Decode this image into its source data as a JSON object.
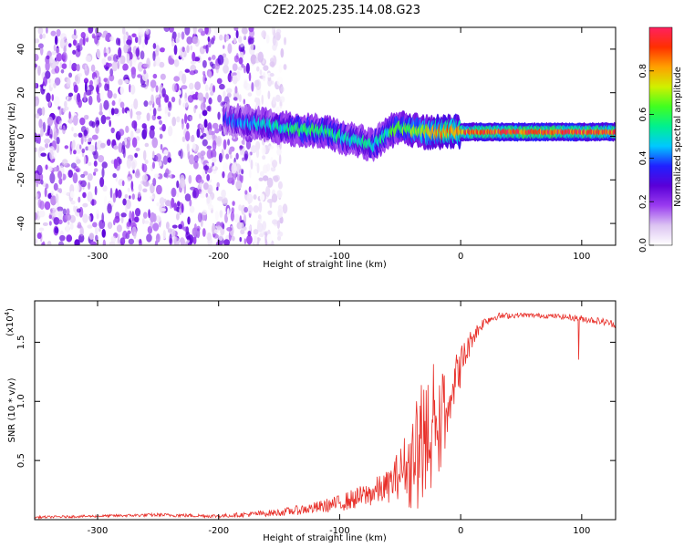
{
  "figure_title": "C2E2.2025.235.14.08.G23",
  "colors": {
    "line": "#e8302a",
    "axis": "#000000",
    "colormap": [
      "#ffffff",
      "#dcc4f2",
      "#9a3cf0",
      "#5a00d8",
      "#2020ff",
      "#00c8ff",
      "#00f090",
      "#40ff20",
      "#d0f000",
      "#ffa000",
      "#ff3000",
      "#ff2060"
    ]
  },
  "chart_data": [
    {
      "type": "heatmap",
      "xlabel": "Height of straight line (km)",
      "ylabel": "Frequency (Hz)",
      "xlim": [
        -352,
        128
      ],
      "ylim": [
        -50,
        50
      ],
      "xticks": [
        -300,
        -200,
        -100,
        0,
        100
      ],
      "yticks": [
        -40,
        -20,
        0,
        20,
        40
      ],
      "colorbar": {
        "label": "Normalized spectral amplitude",
        "range": [
          0.0,
          1.0
        ],
        "ticks": [
          0.0,
          0.2,
          0.4,
          0.6,
          0.8
        ],
        "tick_labels": [
          "0.0",
          "0.2",
          "0.4",
          "0.6",
          "0.8"
        ]
      },
      "signal_track": {
        "x": [
          -195,
          -170,
          -150,
          -130,
          -110,
          -95,
          -85,
          -78,
          -72,
          -66,
          -60,
          -50,
          -40,
          -30,
          -20,
          0,
          40,
          80,
          100,
          128
        ],
        "center_hz": [
          8,
          6,
          4,
          3,
          2,
          -1,
          -2,
          -3,
          -4,
          -1,
          2,
          4,
          3,
          2,
          2,
          2,
          2,
          2,
          2,
          2
        ],
        "amplitude": [
          0.35,
          0.45,
          0.5,
          0.55,
          0.55,
          0.5,
          0.48,
          0.5,
          0.5,
          0.52,
          0.55,
          0.6,
          0.65,
          0.7,
          0.8,
          0.85,
          0.9,
          0.95,
          0.9,
          0.85
        ]
      },
      "noise_region_x": [
        -352,
        -145
      ]
    },
    {
      "type": "line",
      "xlabel": "Height of straight line (km)",
      "ylabel": "SNR (10 * v/v)",
      "y_multiplier": "(x10",
      "y_multiplier_exp": "4",
      "y_multiplier_close": ")",
      "xlim": [
        -352,
        128
      ],
      "ylim": [
        0,
        1.85
      ],
      "xticks": [
        -300,
        -200,
        -100,
        0,
        100
      ],
      "yticks": [
        0.5,
        1.0,
        1.5
      ],
      "ytick_labels": [
        "0.5",
        "1.0",
        "1.5"
      ],
      "series": [
        {
          "x": [
            -352,
            -300,
            -250,
            -200,
            -150,
            -120,
            -100,
            -80,
            -60,
            -50,
            -40,
            -30,
            -20,
            -10,
            0,
            10,
            20,
            30,
            50,
            80,
            100,
            120,
            128
          ],
          "y": [
            0.02,
            0.03,
            0.04,
            0.03,
            0.06,
            0.1,
            0.14,
            0.2,
            0.28,
            0.4,
            0.55,
            0.8,
            0.95,
            1.05,
            1.3,
            1.55,
            1.68,
            1.72,
            1.73,
            1.72,
            1.7,
            1.67,
            1.65
          ],
          "noise": [
            0.01,
            0.01,
            0.015,
            0.015,
            0.03,
            0.05,
            0.07,
            0.1,
            0.14,
            0.22,
            0.35,
            0.45,
            0.4,
            0.25,
            0.18,
            0.08,
            0.04,
            0.03,
            0.02,
            0.02,
            0.03,
            0.03,
            0.03
          ]
        }
      ]
    }
  ]
}
